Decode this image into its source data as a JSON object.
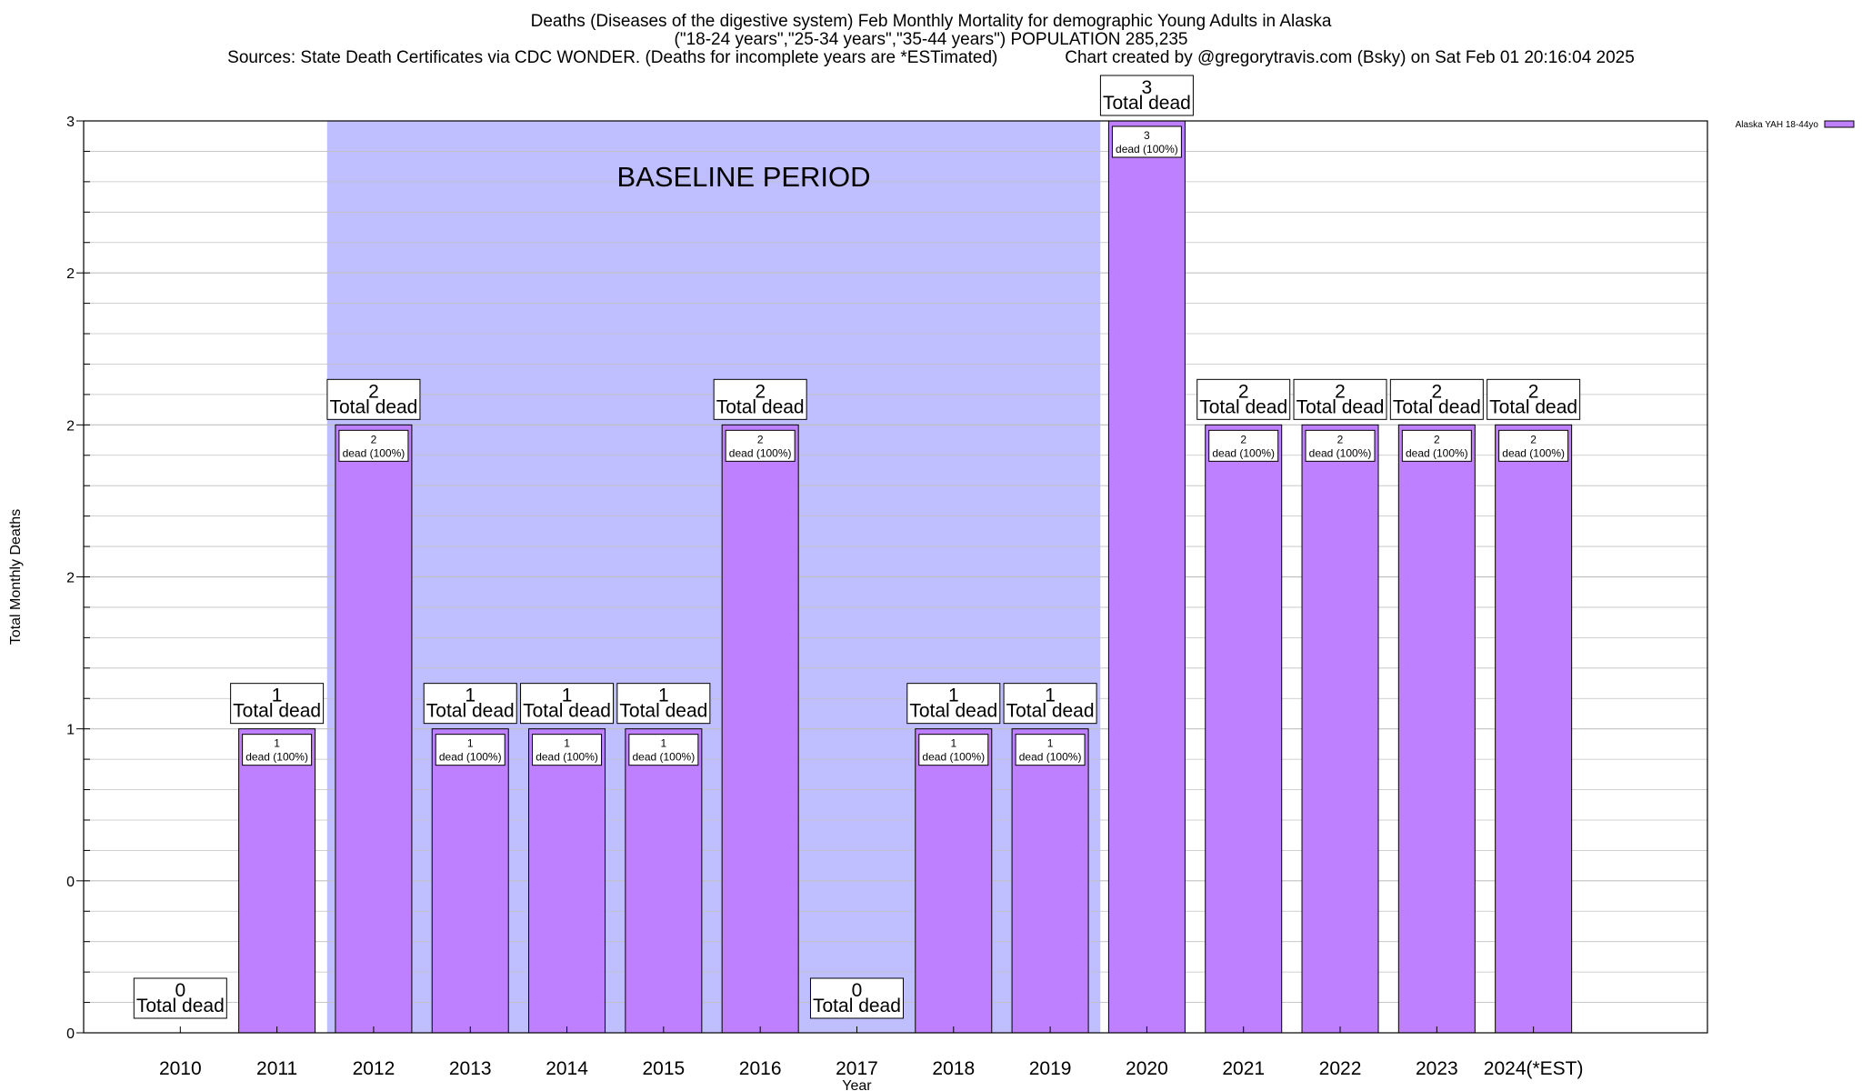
{
  "title": {
    "line1": "Deaths (Diseases of the digestive system) Feb Monthly Mortality for demographic Young Adults in Alaska",
    "line2": "(\"18-24 years\",\"25-34 years\",\"35-44 years\") POPULATION 285,235",
    "line3": "Sources: State Death Certificates via CDC WONDER. (Deaths for incomplete years are *ESTimated)              Chart created by @gregorytravis.com (Bsky) on Sat Feb 01 20:16:04 2025"
  },
  "colors": {
    "bar": "#bf80ff",
    "baseline": "#bfbfff",
    "grid": "#c0c0c0"
  },
  "chart_data": {
    "type": "bar",
    "xlabel": "Year",
    "ylabel": "Total Monthly Deaths",
    "ylim": [
      0,
      3
    ],
    "y_ticks": [
      {
        "value": 0,
        "label": "0"
      },
      {
        "value": 0.5,
        "label": "0"
      },
      {
        "value": 1,
        "label": "1"
      },
      {
        "value": 1.5,
        "label": "2"
      },
      {
        "value": 2,
        "label": "2"
      },
      {
        "value": 2.5,
        "label": "2"
      },
      {
        "value": 3,
        "label": "3"
      }
    ],
    "categories": [
      "2010",
      "2011",
      "2012",
      "2013",
      "2014",
      "2015",
      "2016",
      "2017",
      "2018",
      "2019",
      "2020",
      "2021",
      "2022",
      "2023",
      "2024(*EST)"
    ],
    "series": [
      {
        "name": "Alaska YAH 18-44yo",
        "values": [
          0,
          1,
          2,
          1,
          1,
          1,
          2,
          0,
          1,
          1,
          3,
          2,
          2,
          2,
          2
        ]
      }
    ],
    "bar_labels": {
      "total": [
        "0",
        "1",
        "2",
        "1",
        "1",
        "1",
        "2",
        "0",
        "1",
        "1",
        "3",
        "2",
        "2",
        "2",
        "2"
      ],
      "total_suffix": "Total dead",
      "inner_suffix": "dead (100%)"
    },
    "baseline": {
      "label": "BASELINE PERIOD",
      "start": "2012",
      "end": "2019"
    },
    "legend": {
      "label": "Alaska YAH 18-44yo",
      "position": "top-right"
    }
  }
}
